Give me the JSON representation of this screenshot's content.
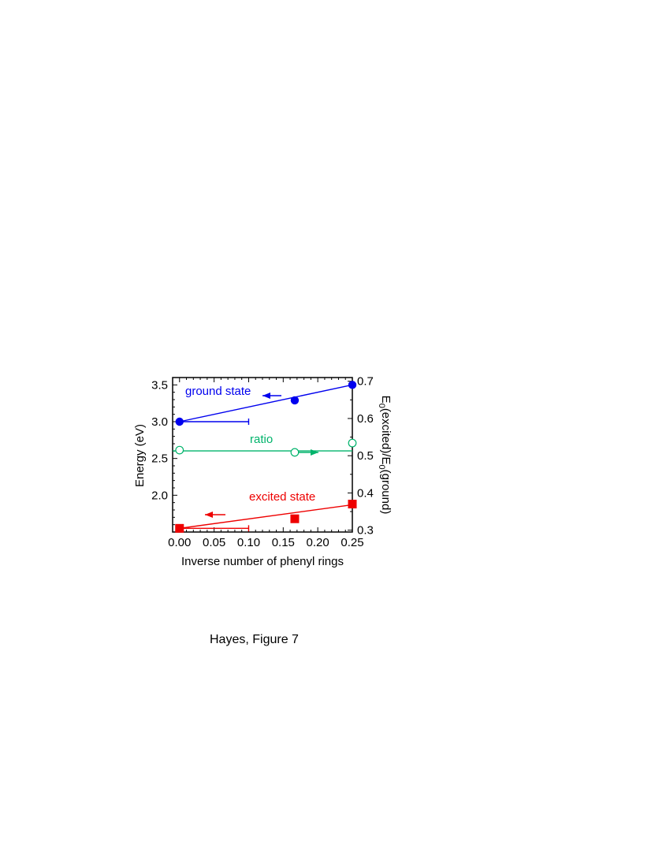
{
  "caption": "Hayes, Figure 7",
  "chart_data": {
    "type": "scatter",
    "title": "",
    "xlabel": "Inverse number of phenyl rings",
    "ylabel": "Energy (eV)",
    "y2label": "E0(excited)/E0(ground)",
    "xlim": [
      -0.01,
      0.25
    ],
    "ylim": [
      1.5,
      3.6
    ],
    "y2lim": [
      0.295,
      0.71
    ],
    "x_ticks": [
      0.0,
      0.05,
      0.1,
      0.15,
      0.2,
      0.25
    ],
    "x_tick_labels": [
      "0.00",
      "0.05",
      "0.10",
      "0.15",
      "0.20",
      "0.25"
    ],
    "y_ticks": [
      2.0,
      2.5,
      3.0,
      3.5
    ],
    "y_tick_labels": [
      "2.0",
      "2.5",
      "3.0",
      "3.5"
    ],
    "y2_ticks": [
      0.3,
      0.4,
      0.5,
      0.6,
      0.7
    ],
    "y2_tick_labels": [
      "0.3",
      "0.4",
      "0.5",
      "0.6",
      "0.7"
    ],
    "grid": false,
    "series": [
      {
        "name": "ground state",
        "axis": "left",
        "color": "#0000ee",
        "marker": "filled-circle",
        "x": [
          0.0,
          0.1667,
          0.25
        ],
        "y": [
          3.0,
          3.29,
          3.5
        ],
        "fit_line": {
          "x": [
            0.0,
            0.25
          ],
          "y": [
            3.0,
            3.5
          ]
        },
        "error_bar": {
          "x": 0.0,
          "y": 3.0,
          "xerr_plus": 0.1
        }
      },
      {
        "name": "ratio",
        "axis": "right",
        "color": "#00b36b",
        "marker": "open-circle",
        "x": [
          0.0,
          0.1667,
          0.25
        ],
        "y": [
          0.515,
          0.509,
          0.534
        ],
        "fit_line": {
          "x": [
            -0.01,
            0.25
          ],
          "y": [
            0.513,
            0.513
          ]
        }
      },
      {
        "name": "excited state",
        "axis": "left",
        "color": "#ee0000",
        "marker": "filled-square",
        "x": [
          0.0,
          0.1667,
          0.25
        ],
        "y": [
          1.55,
          1.68,
          1.88
        ],
        "fit_line": {
          "x": [
            0.0,
            0.25
          ],
          "y": [
            1.55,
            1.87
          ]
        },
        "error_bar": {
          "x": 0.0,
          "y": 1.55,
          "xerr_plus": 0.1
        }
      }
    ],
    "annotations": [
      {
        "text": "ground state",
        "color": "#0000ee",
        "arrow": "left"
      },
      {
        "text": "ratio",
        "color": "#00b36b",
        "arrow": "right"
      },
      {
        "text": "excited state",
        "color": "#ee0000",
        "arrow": "left"
      }
    ]
  }
}
